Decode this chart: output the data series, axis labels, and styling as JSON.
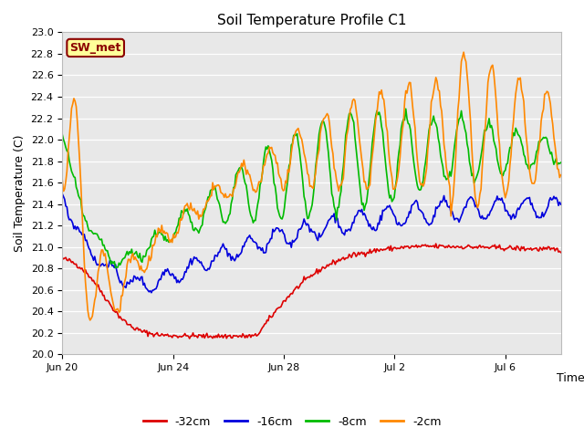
{
  "title": "Soil Temperature Profile C1",
  "ylabel": "Soil Temperature (C)",
  "xlabel": "Time",
  "ylim": [
    20.0,
    23.0
  ],
  "yticks": [
    20.0,
    20.2,
    20.4,
    20.6,
    20.8,
    21.0,
    21.2,
    21.4,
    21.6,
    21.8,
    22.0,
    22.2,
    22.4,
    22.6,
    22.8,
    23.0
  ],
  "fig_bg_color": "#ffffff",
  "plot_bg_color": "#e8e8e8",
  "legend_label": "SW_met",
  "legend_bg": "#ffff99",
  "legend_border": "#8b0000",
  "series": [
    {
      "label": "-32cm",
      "color": "#dd0000",
      "lw": 1.2
    },
    {
      "label": "-16cm",
      "color": "#0000dd",
      "lw": 1.2
    },
    {
      "label": "-8cm",
      "color": "#00bb00",
      "lw": 1.2
    },
    {
      "label": "-2cm",
      "color": "#ff8800",
      "lw": 1.2
    }
  ],
  "xtick_labels": [
    "Jun 20",
    "Jun 24",
    "Jun 28",
    "Jul 2",
    "Jul 6"
  ],
  "xtick_positions": [
    0,
    4,
    8,
    12,
    16
  ],
  "n_days": 18,
  "seed": 42
}
